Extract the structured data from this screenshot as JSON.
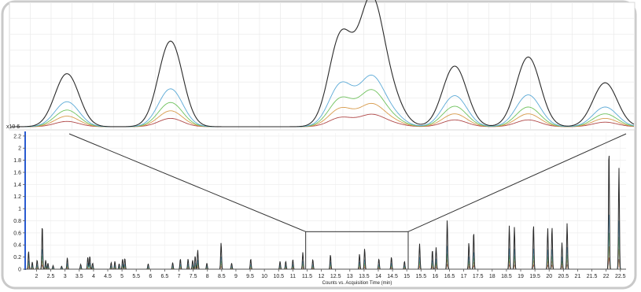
{
  "chart_data": [
    {
      "type": "line",
      "panel": "zoomed chromatogram (inset)",
      "axes_visible": false,
      "x_range": [
        11.45,
        15.05
      ],
      "peaks": [
        {
          "rt": 11.7,
          "heights": [
            0.7,
            0.33,
            0.22,
            0.14,
            0.07
          ]
        },
        {
          "rt": 12.32,
          "heights": [
            1.13,
            0.5,
            0.32,
            0.21,
            0.11
          ]
        },
        {
          "rt": 13.34,
          "heights": [
            1.2,
            0.56,
            0.37,
            0.24,
            0.12
          ]
        },
        {
          "rt": 13.52,
          "heights": [
            1.6,
            0.62,
            0.45,
            0.28,
            0.15
          ]
        },
        {
          "rt": 13.64,
          "heights": [
            0.35,
            0.15,
            0.1,
            0.07,
            0.04
          ]
        },
        {
          "rt": 14.02,
          "heights": [
            0.8,
            0.41,
            0.27,
            0.17,
            0.09
          ]
        },
        {
          "rt": 14.46,
          "heights": [
            0.92,
            0.42,
            0.26,
            0.17,
            0.09
          ]
        },
        {
          "rt": 14.92,
          "heights": [
            0.58,
            0.26,
            0.17,
            0.11,
            0.06
          ]
        }
      ]
    },
    {
      "type": "line",
      "panel": "full chromatogram",
      "xlabel": "Counts vs. Acquisition Time (min)",
      "y_multiplier": "x10 6",
      "xlim": [
        1.6,
        22.7
      ],
      "ylim": [
        0,
        2.25
      ],
      "x_ticks": [
        2,
        2.5,
        3,
        3.5,
        4,
        4.5,
        5,
        5.5,
        6,
        6.5,
        7,
        7.5,
        8,
        8.5,
        9,
        9.5,
        10,
        10.5,
        11,
        11.5,
        12,
        12.5,
        13,
        13.5,
        14,
        14.5,
        15,
        15.5,
        16,
        16.5,
        17,
        17.5,
        18,
        18.5,
        19,
        19.5,
        20,
        20.5,
        21,
        21.5,
        22,
        22.5
      ],
      "y_ticks": [
        0,
        0.2,
        0.4,
        0.6,
        0.8,
        1,
        1.2,
        1.4,
        1.6,
        1.8,
        2,
        2.2
      ],
      "zoom_window": {
        "x": [
          11.45,
          15.05
        ],
        "y": [
          0,
          0.62
        ]
      },
      "peaks": [
        {
          "rt": 1.72,
          "h": 0.3
        },
        {
          "rt": 1.85,
          "h": 0.12
        },
        {
          "rt": 2.02,
          "h": 0.15
        },
        {
          "rt": 2.2,
          "h": 0.73
        },
        {
          "rt": 2.32,
          "h": 0.15
        },
        {
          "rt": 2.4,
          "h": 0.1
        },
        {
          "rt": 2.58,
          "h": 0.06
        },
        {
          "rt": 2.88,
          "h": 0.05
        },
        {
          "rt": 3.08,
          "h": 0.19
        },
        {
          "rt": 3.55,
          "h": 0.08
        },
        {
          "rt": 3.8,
          "h": 0.2
        },
        {
          "rt": 3.87,
          "h": 0.22
        },
        {
          "rt": 3.97,
          "h": 0.1
        },
        {
          "rt": 4.62,
          "h": 0.11
        },
        {
          "rt": 4.75,
          "h": 0.13
        },
        {
          "rt": 4.9,
          "h": 0.09
        },
        {
          "rt": 5.02,
          "h": 0.17
        },
        {
          "rt": 5.1,
          "h": 0.18
        },
        {
          "rt": 5.92,
          "h": 0.09
        },
        {
          "rt": 6.78,
          "h": 0.11
        },
        {
          "rt": 7.05,
          "h": 0.17
        },
        {
          "rt": 7.32,
          "h": 0.17
        },
        {
          "rt": 7.48,
          "h": 0.15
        },
        {
          "rt": 7.57,
          "h": 0.22
        },
        {
          "rt": 7.66,
          "h": 0.32
        },
        {
          "rt": 7.98,
          "h": 0.1
        },
        {
          "rt": 8.48,
          "h": 0.44
        },
        {
          "rt": 8.85,
          "h": 0.1
        },
        {
          "rt": 9.52,
          "h": 0.17
        },
        {
          "rt": 10.55,
          "h": 0.13
        },
        {
          "rt": 10.75,
          "h": 0.13
        },
        {
          "rt": 11.0,
          "h": 0.16
        },
        {
          "rt": 11.35,
          "h": 0.28
        },
        {
          "rt": 11.7,
          "h": 0.16
        },
        {
          "rt": 12.32,
          "h": 0.24
        },
        {
          "rt": 13.34,
          "h": 0.25
        },
        {
          "rt": 13.52,
          "h": 0.34
        },
        {
          "rt": 14.02,
          "h": 0.17
        },
        {
          "rt": 14.46,
          "h": 0.2
        },
        {
          "rt": 14.92,
          "h": 0.13
        },
        {
          "rt": 15.45,
          "h": 0.42
        },
        {
          "rt": 15.9,
          "h": 0.32
        },
        {
          "rt": 16.03,
          "h": 0.36
        },
        {
          "rt": 16.42,
          "h": 0.82
        },
        {
          "rt": 17.18,
          "h": 0.44
        },
        {
          "rt": 17.35,
          "h": 0.62
        },
        {
          "rt": 18.6,
          "h": 0.72
        },
        {
          "rt": 18.78,
          "h": 0.7
        },
        {
          "rt": 19.45,
          "h": 0.74
        },
        {
          "rt": 19.95,
          "h": 0.68
        },
        {
          "rt": 20.1,
          "h": 0.7
        },
        {
          "rt": 20.45,
          "h": 0.44
        },
        {
          "rt": 20.63,
          "h": 0.76
        },
        {
          "rt": 22.1,
          "h": 2.02
        },
        {
          "rt": 22.45,
          "h": 1.68
        }
      ]
    }
  ],
  "trace_colors": [
    "#2a2a2a",
    "#5aa9d6",
    "#6fc25d",
    "#d79a4a",
    "#b04848"
  ],
  "axis_color": "#2a5bd0",
  "frame_border_color": "#c9c9c9"
}
